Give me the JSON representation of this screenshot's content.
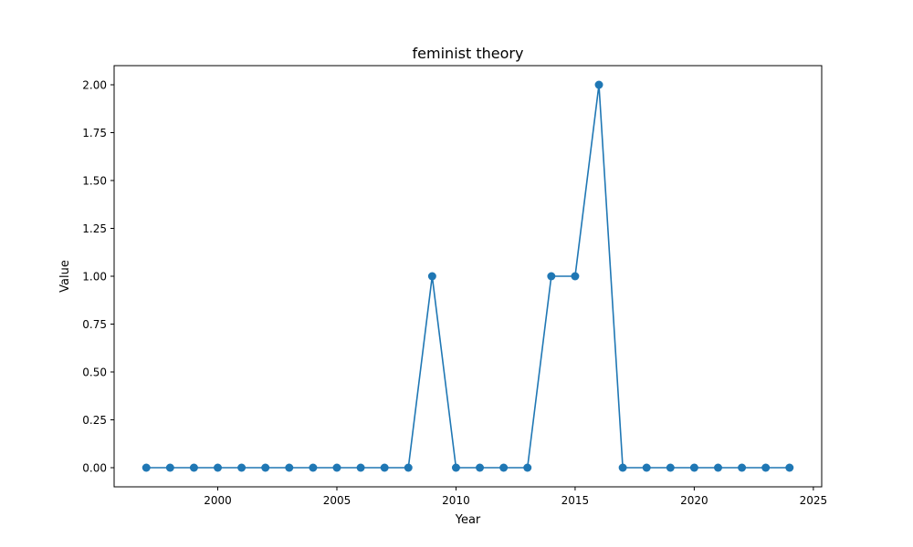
{
  "chart_data": {
    "type": "line",
    "title": "feminist theory",
    "xlabel": "Year",
    "ylabel": "Value",
    "xlim": [
      1995.65,
      2025.35
    ],
    "ylim": [
      -0.1,
      2.1
    ],
    "xticks": [
      2000,
      2005,
      2010,
      2015,
      2020,
      2025
    ],
    "yticks": [
      0.0,
      0.25,
      0.5,
      0.75,
      1.0,
      1.25,
      1.5,
      1.75,
      2.0
    ],
    "ytick_labels": [
      "0.00",
      "0.25",
      "0.50",
      "0.75",
      "1.00",
      "1.25",
      "1.50",
      "1.75",
      "2.00"
    ],
    "grid": false,
    "series": [
      {
        "color": "#1f77b4",
        "marker": "circle",
        "x": [
          1997,
          1998,
          1999,
          2000,
          2001,
          2002,
          2003,
          2004,
          2005,
          2006,
          2007,
          2008,
          2009,
          2010,
          2011,
          2012,
          2013,
          2014,
          2015,
          2016,
          2017,
          2018,
          2019,
          2020,
          2021,
          2022,
          2023,
          2024
        ],
        "y": [
          0,
          0,
          0,
          0,
          0,
          0,
          0,
          0,
          0,
          0,
          0,
          0,
          1,
          0,
          0,
          0,
          0,
          1,
          1,
          2,
          0,
          0,
          0,
          0,
          0,
          0,
          0,
          0
        ]
      }
    ]
  }
}
